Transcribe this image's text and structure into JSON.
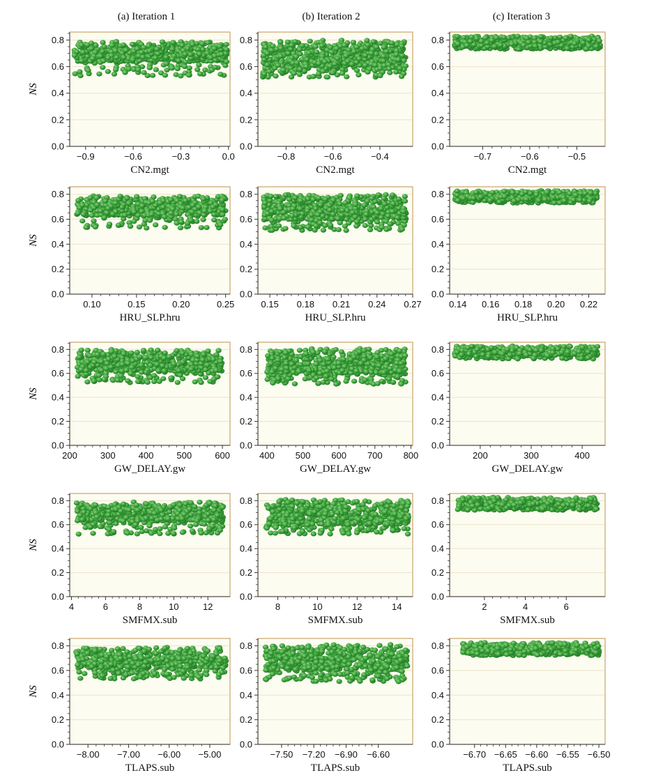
{
  "figure": {
    "columns": [
      "(a)  Iteration 1",
      "(b)  Iteration 2",
      "(c)  Iteration 3"
    ],
    "y_label": "NS"
  },
  "colors": {
    "point_fill": "#3aa33a",
    "point_highlight": "#8fd07f",
    "point_edge": "#1f6f22",
    "plot_bg": "#fdfcf1",
    "frame": "#c9a46a",
    "grid": "#ece3c8"
  },
  "chart_data": [
    {
      "type": "scatter",
      "row": 0,
      "col": 0,
      "xlabel": "CN2.mgt",
      "ylabel": "NS",
      "xlim": [
        -1.0,
        0.01
      ],
      "ylim": [
        0,
        0.86
      ],
      "xticks": [
        -0.9,
        -0.6,
        -0.3,
        0.0
      ],
      "xticklabels": [
        "−0.9",
        "−0.6",
        "−0.3",
        "0.0"
      ],
      "yticks": [
        0,
        0.2,
        0.4,
        0.6,
        0.8
      ],
      "yticklabels": [
        "0.0",
        "0.2",
        "0.4",
        "0.6",
        "0.8"
      ],
      "grid": true,
      "points": {
        "n": 600,
        "x_range": [
          -0.97,
          -0.01
        ],
        "ns_max": 0.79,
        "ns_band": [
          0.64,
          0.79
        ],
        "ns_outlier_min": 0.53,
        "seed": 11
      }
    },
    {
      "type": "scatter",
      "row": 0,
      "col": 1,
      "xlabel": "CN2.mgt",
      "ylabel": "NS",
      "xlim": [
        -0.92,
        -0.26
      ],
      "ylim": [
        0,
        0.86
      ],
      "xticks": [
        -0.8,
        -0.6,
        -0.4
      ],
      "xticklabels": [
        "−0.8",
        "−0.6",
        "−0.4"
      ],
      "yticks": [
        0,
        0.2,
        0.4,
        0.6,
        0.8
      ],
      "yticklabels": [
        "0.0",
        "0.2",
        "0.4",
        "0.6",
        "0.8"
      ],
      "grid": true,
      "points": {
        "n": 650,
        "x_range": [
          -0.9,
          -0.29
        ],
        "ns_max": 0.8,
        "ns_band": [
          0.6,
          0.8
        ],
        "ns_outlier_min": 0.52,
        "seed": 12
      }
    },
    {
      "type": "scatter",
      "row": 0,
      "col": 2,
      "xlabel": "CN2.mgt",
      "ylabel": "NS",
      "xlim": [
        -0.77,
        -0.44
      ],
      "ylim": [
        0,
        0.86
      ],
      "xticks": [
        -0.7,
        -0.6,
        -0.5
      ],
      "xticklabels": [
        "−0.7",
        "−0.6",
        "−0.5"
      ],
      "yticks": [
        0,
        0.2,
        0.4,
        0.6,
        0.8
      ],
      "yticklabels": [
        "0.0",
        "0.2",
        "0.4",
        "0.6",
        "0.8"
      ],
      "grid": true,
      "points": {
        "n": 600,
        "x_range": [
          -0.76,
          -0.45
        ],
        "ns_max": 0.83,
        "ns_band": [
          0.75,
          0.83
        ],
        "ns_outlier_min": 0.73,
        "seed": 13
      }
    },
    {
      "type": "scatter",
      "row": 1,
      "col": 0,
      "xlabel": "HRU_SLP.hru",
      "ylabel": "NS",
      "xlim": [
        0.075,
        0.255
      ],
      "ylim": [
        0,
        0.86
      ],
      "xticks": [
        0.1,
        0.15,
        0.2,
        0.25
      ],
      "xticklabels": [
        "0.10",
        "0.15",
        "0.20",
        "0.25"
      ],
      "yticks": [
        0,
        0.2,
        0.4,
        0.6,
        0.8
      ],
      "yticklabels": [
        "0.0",
        "0.2",
        "0.4",
        "0.6",
        "0.8"
      ],
      "grid": true,
      "points": {
        "n": 600,
        "x_range": [
          0.083,
          0.25
        ],
        "ns_max": 0.79,
        "ns_band": [
          0.63,
          0.79
        ],
        "ns_outlier_min": 0.53,
        "seed": 21
      }
    },
    {
      "type": "scatter",
      "row": 1,
      "col": 1,
      "xlabel": "HRU_SLP.hru",
      "ylabel": "NS",
      "xlim": [
        0.14,
        0.27
      ],
      "ylim": [
        0,
        0.86
      ],
      "xticks": [
        0.15,
        0.18,
        0.21,
        0.24,
        0.27
      ],
      "xticklabels": [
        "0.15",
        "0.18",
        "0.21",
        "0.24",
        "0.27"
      ],
      "yticks": [
        0,
        0.2,
        0.4,
        0.6,
        0.8
      ],
      "yticklabels": [
        "0.0",
        "0.2",
        "0.4",
        "0.6",
        "0.8"
      ],
      "grid": true,
      "points": {
        "n": 650,
        "x_range": [
          0.145,
          0.265
        ],
        "ns_max": 0.8,
        "ns_band": [
          0.6,
          0.8
        ],
        "ns_outlier_min": 0.51,
        "seed": 22
      }
    },
    {
      "type": "scatter",
      "row": 1,
      "col": 2,
      "xlabel": "HRU_SLP.hru",
      "ylabel": "NS",
      "xlim": [
        0.135,
        0.23
      ],
      "ylim": [
        0,
        0.86
      ],
      "xticks": [
        0.14,
        0.16,
        0.18,
        0.2,
        0.22
      ],
      "xticklabels": [
        "0.14",
        "0.16",
        "0.18",
        "0.20",
        "0.22"
      ],
      "yticks": [
        0,
        0.2,
        0.4,
        0.6,
        0.8
      ],
      "yticklabels": [
        "0.0",
        "0.2",
        "0.4",
        "0.6",
        "0.8"
      ],
      "grid": true,
      "points": {
        "n": 600,
        "x_range": [
          0.138,
          0.225
        ],
        "ns_max": 0.83,
        "ns_band": [
          0.75,
          0.83
        ],
        "ns_outlier_min": 0.73,
        "seed": 23
      }
    },
    {
      "type": "scatter",
      "row": 2,
      "col": 0,
      "xlabel": "GW_DELAY.gw",
      "ylabel": "NS",
      "xlim": [
        200,
        620
      ],
      "ylim": [
        0,
        0.86
      ],
      "xticks": [
        200,
        300,
        400,
        500,
        600
      ],
      "xticklabels": [
        "200",
        "300",
        "400",
        "500",
        "600"
      ],
      "yticks": [
        0,
        0.2,
        0.4,
        0.6,
        0.8
      ],
      "yticklabels": [
        "0.0",
        "0.2",
        "0.4",
        "0.6",
        "0.8"
      ],
      "grid": true,
      "points": {
        "n": 600,
        "x_range": [
          220,
          600
        ],
        "ns_max": 0.8,
        "ns_band": [
          0.62,
          0.8
        ],
        "ns_outlier_min": 0.52,
        "seed": 31
      }
    },
    {
      "type": "scatter",
      "row": 2,
      "col": 1,
      "xlabel": "GW_DELAY.gw",
      "ylabel": "NS",
      "xlim": [
        375,
        805
      ],
      "ylim": [
        0,
        0.86
      ],
      "xticks": [
        400,
        500,
        600,
        700,
        800
      ],
      "xticklabels": [
        "400",
        "500",
        "600",
        "700",
        "800"
      ],
      "yticks": [
        0,
        0.2,
        0.4,
        0.6,
        0.8
      ],
      "yticklabels": [
        "0.0",
        "0.2",
        "0.4",
        "0.6",
        "0.8"
      ],
      "grid": true,
      "points": {
        "n": 650,
        "x_range": [
          400,
          785
        ],
        "ns_max": 0.81,
        "ns_band": [
          0.6,
          0.81
        ],
        "ns_outlier_min": 0.51,
        "seed": 32
      }
    },
    {
      "type": "scatter",
      "row": 2,
      "col": 2,
      "xlabel": "GW_DELAY.gw",
      "ylabel": "NS",
      "xlim": [
        140,
        445
      ],
      "ylim": [
        0,
        0.86
      ],
      "xticks": [
        200,
        300,
        400
      ],
      "xticklabels": [
        "200",
        "300",
        "400"
      ],
      "yticks": [
        0,
        0.2,
        0.4,
        0.6,
        0.8
      ],
      "yticklabels": [
        "0.0",
        "0.2",
        "0.4",
        "0.6",
        "0.8"
      ],
      "grid": true,
      "points": {
        "n": 600,
        "x_range": [
          150,
          430
        ],
        "ns_max": 0.83,
        "ns_band": [
          0.75,
          0.83
        ],
        "ns_outlier_min": 0.72,
        "seed": 33
      }
    },
    {
      "type": "scatter",
      "row": 3,
      "col": 0,
      "xlabel": "SMFMX.sub",
      "ylabel": "NS",
      "xlim": [
        3.9,
        13.3
      ],
      "ylim": [
        0,
        0.86
      ],
      "xticks": [
        4,
        6,
        8,
        10,
        12
      ],
      "xticklabels": [
        "4",
        "6",
        "8",
        "10",
        "12"
      ],
      "yticks": [
        0,
        0.2,
        0.4,
        0.6,
        0.8
      ],
      "yticklabels": [
        "0.0",
        "0.2",
        "0.4",
        "0.6",
        "0.8"
      ],
      "grid": true,
      "points": {
        "n": 600,
        "x_range": [
          4.3,
          12.9
        ],
        "ns_max": 0.79,
        "ns_band": [
          0.63,
          0.79
        ],
        "ns_outlier_min": 0.52,
        "seed": 41
      }
    },
    {
      "type": "scatter",
      "row": 3,
      "col": 1,
      "xlabel": "SMFMX.sub",
      "ylabel": "NS",
      "xlim": [
        7.0,
        14.8
      ],
      "ylim": [
        0,
        0.86
      ],
      "xticks": [
        8,
        10,
        12,
        14
      ],
      "xticklabels": [
        "8",
        "10",
        "12",
        "14"
      ],
      "yticks": [
        0,
        0.2,
        0.4,
        0.6,
        0.8
      ],
      "yticklabels": [
        "0.0",
        "0.2",
        "0.4",
        "0.6",
        "0.8"
      ],
      "grid": true,
      "points": {
        "n": 650,
        "x_range": [
          7.4,
          14.6
        ],
        "ns_max": 0.81,
        "ns_band": [
          0.6,
          0.81
        ],
        "ns_outlier_min": 0.52,
        "seed": 42
      }
    },
    {
      "type": "scatter",
      "row": 3,
      "col": 2,
      "xlabel": "SMFMX.sub",
      "ylabel": "NS",
      "xlim": [
        0.3,
        7.9
      ],
      "ylim": [
        0,
        0.86
      ],
      "xticks": [
        2,
        4,
        6
      ],
      "xticklabels": [
        "2",
        "4",
        "6"
      ],
      "yticks": [
        0,
        0.2,
        0.4,
        0.6,
        0.8
      ],
      "yticklabels": [
        "0.0",
        "0.2",
        "0.4",
        "0.6",
        "0.8"
      ],
      "grid": true,
      "points": {
        "n": 600,
        "x_range": [
          0.7,
          7.5
        ],
        "ns_max": 0.83,
        "ns_band": [
          0.74,
          0.83
        ],
        "ns_outlier_min": 0.72,
        "seed": 43
      }
    },
    {
      "type": "scatter",
      "row": 4,
      "col": 0,
      "xlabel": "TLAPS.sub",
      "ylabel": "NS",
      "xlim": [
        -8.45,
        -4.5
      ],
      "ylim": [
        0,
        0.86
      ],
      "xticks": [
        -8,
        -7,
        -6,
        -5
      ],
      "xticklabels": [
        "−8.00",
        "−7.00",
        "−6.00",
        "−5.00"
      ],
      "yticks": [
        0,
        0.2,
        0.4,
        0.6,
        0.8
      ],
      "yticklabels": [
        "0.0",
        "0.2",
        "0.4",
        "0.6",
        "0.8"
      ],
      "grid": true,
      "points": {
        "n": 600,
        "x_range": [
          -8.3,
          -4.6
        ],
        "ns_max": 0.79,
        "ns_band": [
          0.62,
          0.79
        ],
        "ns_outlier_min": 0.53,
        "seed": 51
      }
    },
    {
      "type": "scatter",
      "row": 4,
      "col": 1,
      "xlabel": "TLAPS.sub",
      "ylabel": "NS",
      "xlim": [
        -7.72,
        -6.28
      ],
      "ylim": [
        0,
        0.86
      ],
      "xticks": [
        -7.5,
        -7.2,
        -6.9,
        -6.6
      ],
      "xticklabels": [
        "−7.50",
        "−7.20",
        "−6.90",
        "−6.60"
      ],
      "yticks": [
        0,
        0.2,
        0.4,
        0.6,
        0.8
      ],
      "yticklabels": [
        "0.0",
        "0.2",
        "0.4",
        "0.6",
        "0.8"
      ],
      "grid": true,
      "points": {
        "n": 650,
        "x_range": [
          -7.65,
          -6.33
        ],
        "ns_max": 0.81,
        "ns_band": [
          0.6,
          0.81
        ],
        "ns_outlier_min": 0.51,
        "seed": 52
      }
    },
    {
      "type": "scatter",
      "row": 4,
      "col": 2,
      "xlabel": "TLAPS.sub",
      "ylabel": "NS",
      "xlim": [
        -6.74,
        -6.49
      ],
      "ylim": [
        0,
        0.86
      ],
      "xticks": [
        -6.7,
        -6.65,
        -6.6,
        -6.55,
        -6.5
      ],
      "xticklabels": [
        "−6.70",
        "−6.65",
        "−6.60",
        "−6.55",
        "−6.50"
      ],
      "yticks": [
        0,
        0.2,
        0.4,
        0.6,
        0.8
      ],
      "yticklabels": [
        "0.0",
        "0.2",
        "0.4",
        "0.6",
        "0.8"
      ],
      "grid": true,
      "points": {
        "n": 600,
        "x_range": [
          -6.72,
          -6.5
        ],
        "ns_max": 0.83,
        "ns_band": [
          0.74,
          0.83
        ],
        "ns_outlier_min": 0.72,
        "seed": 53
      }
    }
  ]
}
